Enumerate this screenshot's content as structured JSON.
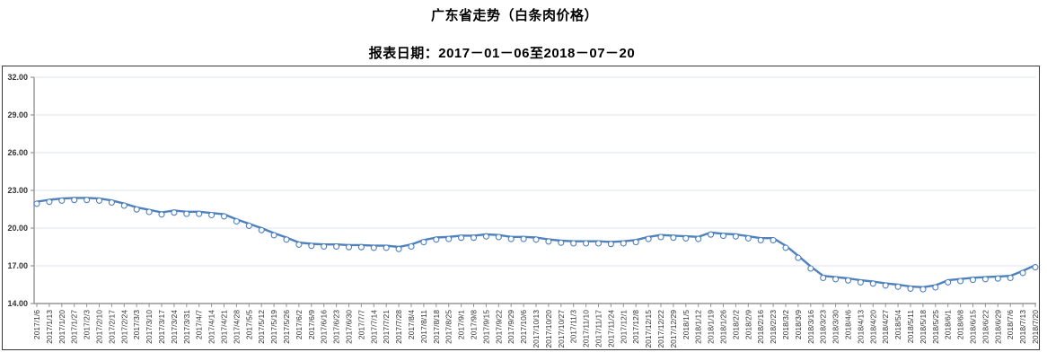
{
  "header": {
    "title": "广东省走势（白条肉价格）",
    "subtitle": "报表日期：2017－01－06至2018－07－20"
  },
  "chart_data": {
    "type": "line",
    "title": "广东省走势（白条肉价格）",
    "subtitle": "报表日期：2017－01－06至2018－07－20",
    "xlabel": "",
    "ylabel": "",
    "ylim": [
      14,
      32
    ],
    "y_tick_step": 3,
    "y_tick_values": [
      32,
      29,
      26,
      23,
      20,
      17,
      14
    ],
    "y_tick_labels": [
      "32.00",
      "29.00",
      "26.00",
      "23.00",
      "20.00",
      "17.00",
      "14.00"
    ],
    "grid": true,
    "legend_position": "none",
    "marker": "open-circle",
    "x": [
      "2017/1/6",
      "2017/1/13",
      "2017/1/20",
      "2017/1/27",
      "2017/2/3",
      "2017/2/10",
      "2017/2/17",
      "2017/2/24",
      "2017/3/3",
      "2017/3/10",
      "2017/3/17",
      "2017/3/24",
      "2017/3/31",
      "2017/4/7",
      "2017/4/14",
      "2017/4/21",
      "2017/4/28",
      "2017/5/5",
      "2017/5/12",
      "2017/5/19",
      "2017/5/26",
      "2017/6/2",
      "2017/6/9",
      "2017/6/16",
      "2017/6/23",
      "2017/6/30",
      "2017/7/7",
      "2017/7/14",
      "2017/7/21",
      "2017/7/28",
      "2017/8/4",
      "2017/8/11",
      "2017/8/18",
      "2017/8/25",
      "2017/9/1",
      "2017/9/8",
      "2017/9/15",
      "2017/9/22",
      "2017/9/29",
      "2017/10/6",
      "2017/10/13",
      "2017/10/20",
      "2017/10/27",
      "2017/11/3",
      "2017/11/10",
      "2017/11/17",
      "2017/11/24",
      "2017/12/1",
      "2017/12/8",
      "2017/12/15",
      "2017/12/22",
      "2017/12/29",
      "2018/1/5",
      "2018/1/12",
      "2018/1/19",
      "2018/1/26",
      "2018/2/2",
      "2018/2/9",
      "2018/2/16",
      "2018/2/23",
      "2018/3/2",
      "2018/3/9",
      "2018/3/16",
      "2018/3/23",
      "2018/3/30",
      "2018/4/6",
      "2018/4/13",
      "2018/4/20",
      "2018/4/27",
      "2018/5/4",
      "2018/5/11",
      "2018/5/18",
      "2018/5/25",
      "2018/6/1",
      "2018/6/8",
      "2018/6/15",
      "2018/6/22",
      "2018/6/29",
      "2018/7/6",
      "2018/7/13",
      "2018/7/20"
    ],
    "series": [
      {
        "name": "白条肉价格",
        "values": [
          22.1,
          22.25,
          22.35,
          22.4,
          22.4,
          22.35,
          22.2,
          21.95,
          21.65,
          21.45,
          21.25,
          21.4,
          21.3,
          21.3,
          21.2,
          21.1,
          20.7,
          20.35,
          20.0,
          19.6,
          19.25,
          18.85,
          18.75,
          18.7,
          18.7,
          18.65,
          18.65,
          18.6,
          18.6,
          18.5,
          18.7,
          19.05,
          19.25,
          19.3,
          19.4,
          19.4,
          19.5,
          19.45,
          19.3,
          19.3,
          19.25,
          19.1,
          19.0,
          18.95,
          18.95,
          18.95,
          18.9,
          18.95,
          19.05,
          19.3,
          19.45,
          19.4,
          19.35,
          19.3,
          19.65,
          19.55,
          19.5,
          19.35,
          19.2,
          19.2,
          18.6,
          17.8,
          16.95,
          16.2,
          16.1,
          16.0,
          15.85,
          15.75,
          15.6,
          15.5,
          15.35,
          15.3,
          15.45,
          15.85,
          15.95,
          16.05,
          16.1,
          16.15,
          16.2,
          16.6,
          17.05
        ]
      }
    ],
    "colors": {
      "line": "#4f81bd",
      "marker_stroke": "#4f81bd",
      "marker_fill": "#ffffff",
      "gridline": "#dce6f2",
      "axis": "#959595",
      "tick_label": "#333333",
      "frame_border": "#3a3a3a"
    }
  }
}
